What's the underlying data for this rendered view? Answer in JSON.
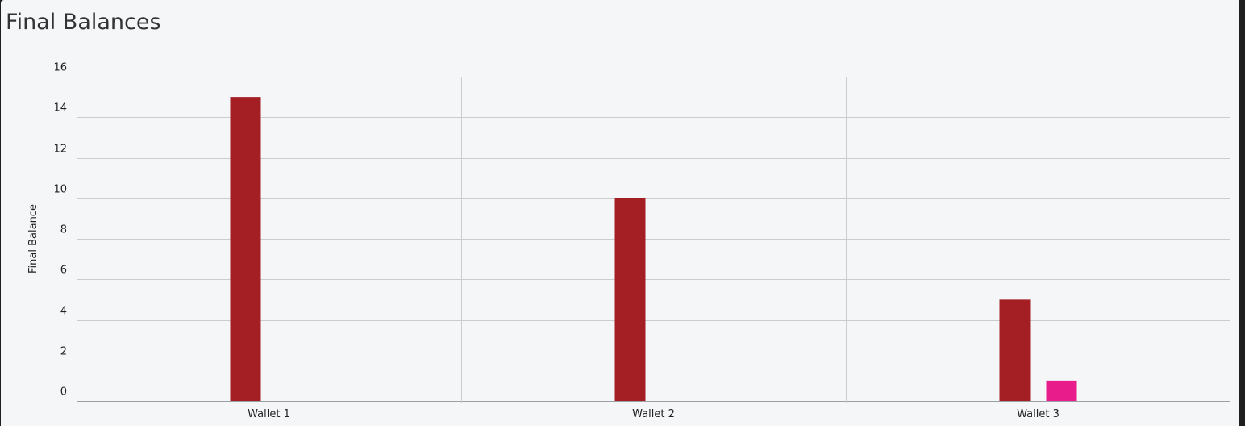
{
  "panel": {
    "title": "Final Balances"
  },
  "chart_data": {
    "type": "bar",
    "title": "Final Balances",
    "xlabel": "",
    "ylabel": "Final Balance",
    "categories": [
      "Wallet 1",
      "Wallet 2",
      "Wallet 3"
    ],
    "ylim": [
      0,
      16
    ],
    "yticks": [
      0,
      2,
      4,
      6,
      8,
      10,
      12,
      14,
      16
    ],
    "grid": true,
    "series": [
      {
        "values": [
          15,
          10,
          5
        ],
        "color": "#a31f24"
      },
      {
        "values": [
          null,
          null,
          1
        ],
        "color": "#e81c8a"
      }
    ]
  }
}
